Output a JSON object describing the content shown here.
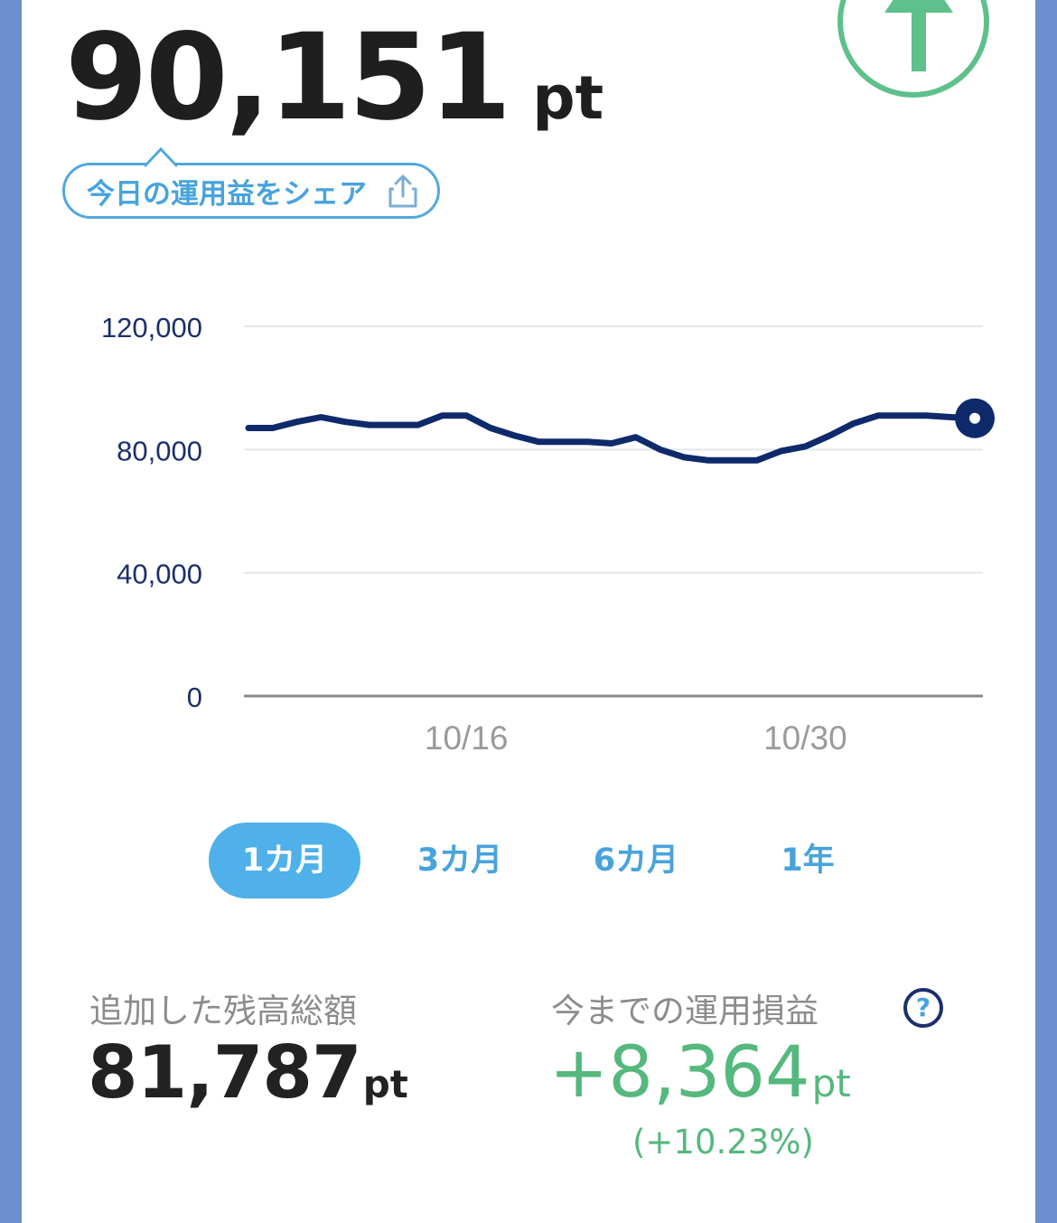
{
  "header": {
    "balance_value": "90,151",
    "balance_unit": "pt",
    "trend_icon": "arrow-up-icon",
    "share_label": "今日の運用益をシェア",
    "share_icon": "share-icon"
  },
  "chart_data": {
    "type": "line",
    "y_ticks": [
      "120,000",
      "80,000",
      "40,000",
      "0"
    ],
    "ylim": [
      0,
      120000
    ],
    "x_ticks": [
      "10/16",
      "10/30"
    ],
    "series": [
      {
        "values": [
          87000,
          87000,
          89000,
          90500,
          89000,
          88000,
          88000,
          88000,
          91000,
          91000,
          87000,
          84500,
          82500,
          82500,
          82500,
          82000,
          84000,
          80000,
          77500,
          76500,
          76500,
          76500,
          79500,
          81000,
          84500,
          88500,
          91000,
          91000,
          91000,
          90500,
          90151
        ]
      }
    ],
    "grid": true,
    "line_color": "#0f2a6b",
    "highlight_last_point": true
  },
  "tabs": [
    {
      "label": "1カ月",
      "active": true
    },
    {
      "label": "3カ月",
      "active": false
    },
    {
      "label": "6カ月",
      "active": false
    },
    {
      "label": "1年",
      "active": false
    }
  ],
  "stats": {
    "added_label": "追加した残高総額",
    "added_value": "81,787",
    "added_unit": "pt",
    "gain_label": "今までの運用損益",
    "gain_value": "+8,364",
    "gain_unit": "pt",
    "gain_percent": "(+10.23%)",
    "help_icon_text": "?"
  },
  "colors": {
    "accent_blue": "#47a3dc",
    "gain_green": "#55b87d",
    "line_navy": "#0f2a6b",
    "frame_blue": "#6b8fcf"
  }
}
